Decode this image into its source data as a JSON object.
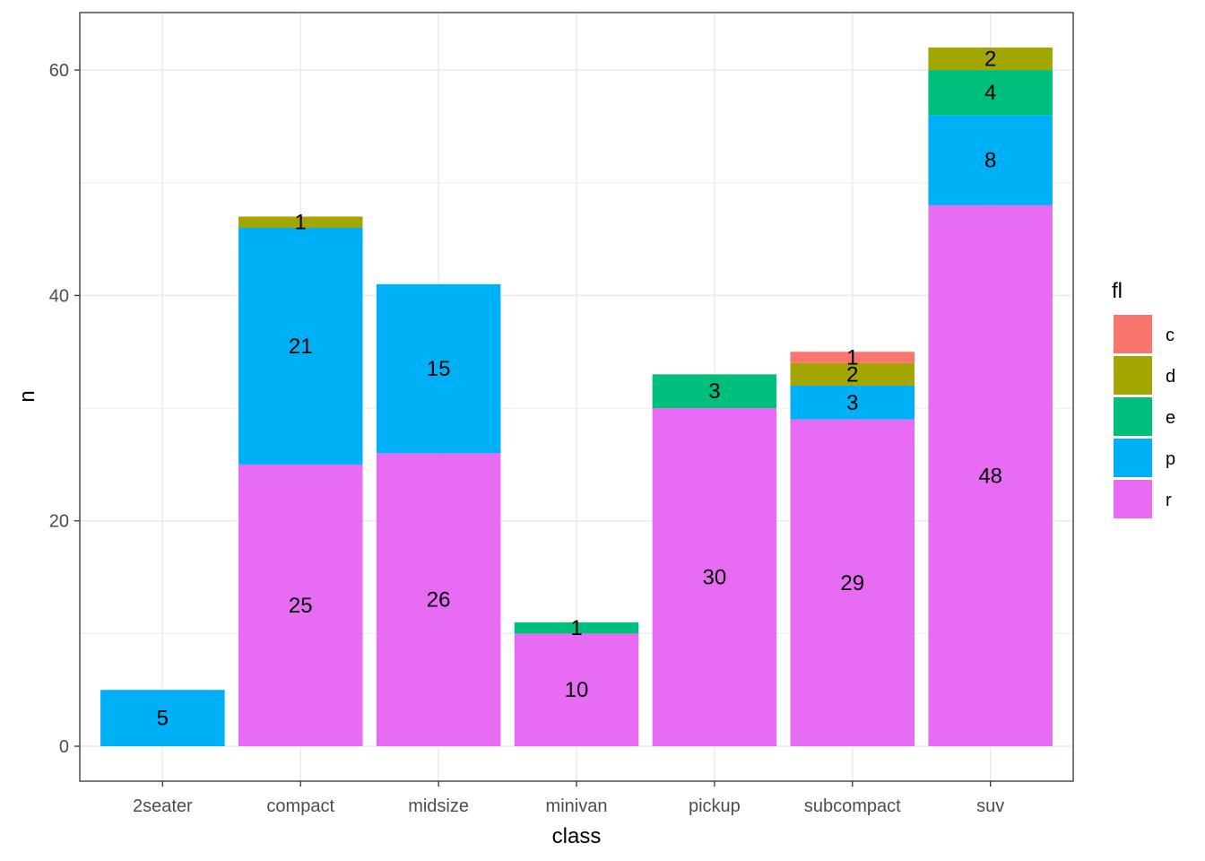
{
  "chart_data": {
    "type": "bar",
    "stacked": true,
    "categories": [
      "2seater",
      "compact",
      "midsize",
      "minivan",
      "pickup",
      "subcompact",
      "suv"
    ],
    "series": [
      {
        "name": "c",
        "color": "#F8766D",
        "values": [
          0,
          0,
          0,
          0,
          0,
          1,
          0
        ]
      },
      {
        "name": "d",
        "color": "#A3A500",
        "values": [
          0,
          1,
          0,
          0,
          0,
          2,
          2
        ]
      },
      {
        "name": "e",
        "color": "#00BF7D",
        "values": [
          0,
          0,
          0,
          1,
          3,
          0,
          4
        ]
      },
      {
        "name": "p",
        "color": "#00B0F6",
        "values": [
          5,
          21,
          15,
          0,
          0,
          3,
          8
        ]
      },
      {
        "name": "r",
        "color": "#E76BF3",
        "values": [
          0,
          25,
          26,
          10,
          30,
          29,
          48
        ]
      }
    ],
    "xlabel": "class",
    "ylabel": "n",
    "ylim": [
      -3.1,
      65.1
    ],
    "yticks": [
      0,
      20,
      40,
      60
    ],
    "grid": true,
    "legend": {
      "title": "fl",
      "position": "right"
    }
  }
}
